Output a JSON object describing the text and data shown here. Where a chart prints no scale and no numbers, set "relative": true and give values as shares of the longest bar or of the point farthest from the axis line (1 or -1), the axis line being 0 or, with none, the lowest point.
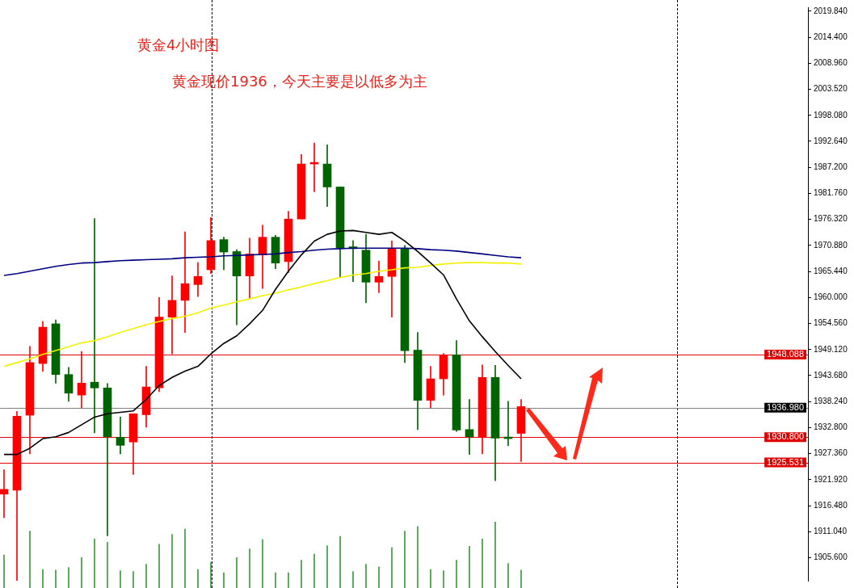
{
  "chart_data": [
    {
      "type": "candlestick",
      "title": "黄金4小时图",
      "subtitle": "黄金现价1936，今天主要是以低多为主",
      "tick_labels": "y",
      "categories": [
        null,
        null,
        null,
        null,
        null,
        null,
        null,
        null,
        null,
        null,
        null,
        null,
        null,
        null,
        null,
        null,
        null,
        null,
        null,
        null,
        null,
        null,
        null,
        null,
        null,
        null,
        null,
        null,
        null,
        null,
        null,
        null,
        null,
        null,
        null,
        null,
        null,
        null,
        null,
        null,
        null
      ],
      "ohlc": [
        [
          1918.9,
          1924.0,
          1914.0,
          1919.9
        ],
        [
          1919.7,
          1936.2,
          1900.8,
          1935.2
        ],
        [
          1935.4,
          1949.8,
          1927.3,
          1946.4
        ],
        [
          1946.2,
          1955.0,
          1944.6,
          1953.8
        ],
        [
          1954.5,
          1955.3,
          1942.1,
          1943.9
        ],
        [
          1943.9,
          1945.4,
          1938.3,
          1940.0
        ],
        [
          1939.6,
          1948.7,
          1937.0,
          1942.1
        ],
        [
          1942.3,
          1976.5,
          1931.7,
          1941.1
        ],
        [
          1941.1,
          1942.0,
          1910.2,
          1930.9
        ],
        [
          1930.8,
          1935.0,
          1927.3,
          1929.1
        ],
        [
          1929.8,
          1935.7,
          1923.0,
          1935.7
        ],
        [
          1935.5,
          1945.6,
          1932.9,
          1941.3
        ],
        [
          1941.1,
          1960.0,
          1940.3,
          1955.9
        ],
        [
          1955.9,
          1964.5,
          1948.2,
          1959.4
        ],
        [
          1959.4,
          1973.7,
          1952.7,
          1962.9
        ],
        [
          1962.7,
          1967.3,
          1960.2,
          1964.4
        ],
        [
          1965.8,
          1976.7,
          1965.0,
          1971.9
        ],
        [
          1972.1,
          1972.6,
          1965.8,
          1969.5
        ],
        [
          1969.6,
          1970.0,
          1954.3,
          1964.5
        ],
        [
          1964.5,
          1972.4,
          1959.9,
          1969.1
        ],
        [
          1968.9,
          1975.1,
          1961.9,
          1972.6
        ],
        [
          1972.6,
          1973.0,
          1966.0,
          1967.2
        ],
        [
          1967.5,
          1978.0,
          1965.2,
          1976.4
        ],
        [
          1976.4,
          1989.9,
          1976.4,
          1987.9
        ],
        [
          1987.9,
          1992.3,
          1982.1,
          1987.9
        ],
        [
          1987.9,
          1991.9,
          1979.0,
          1983.1
        ],
        [
          1983.1,
          1983.1,
          1964.2,
          1970.4
        ],
        [
          1970.6,
          1971.9,
          1963.3,
          1970.2
        ],
        [
          1969.9,
          1973.2,
          1958.9,
          1963.2
        ],
        [
          1963.2,
          1967.6,
          1961.0,
          1964.4
        ],
        [
          1964.4,
          1971.8,
          1955.9,
          1970.3
        ],
        [
          1970.3,
          1970.9,
          1946.4,
          1948.9
        ],
        [
          1949.0,
          1952.7,
          1932.4,
          1938.5
        ],
        [
          1938.5,
          1945.6,
          1937.0,
          1943.0
        ],
        [
          1943.0,
          1948.3,
          1939.6,
          1948.0
        ],
        [
          1948.0,
          1951.0,
          1932.0,
          1932.3
        ],
        [
          1932.4,
          1938.7,
          1927.2,
          1930.9
        ],
        [
          1930.8,
          1945.9,
          1927.3,
          1943.3
        ],
        [
          1943.3,
          1945.8,
          1921.7,
          1930.6
        ],
        [
          1930.8,
          1938.3,
          1929.0,
          1930.5
        ],
        [
          1931.6,
          1938.7,
          1925.7,
          1937.2
        ]
      ],
      "colors": [
        "#ff0000",
        "#ff0000",
        "#ff0000",
        "#ff0000",
        "#006400",
        "#006400",
        "#ff0000",
        "#006400",
        "#006400",
        "#006400",
        "#ff0000",
        "#ff0000",
        "#ff0000",
        "#ff0000",
        "#ff0000",
        "#ff0000",
        "#ff0000",
        "#006400",
        "#006400",
        "#ff0000",
        "#ff0000",
        "#006400",
        "#ff0000",
        "#ff0000",
        "#ff0000",
        "#006400",
        "#006400",
        "#006400",
        "#006400",
        "#ff0000",
        "#ff0000",
        "#006400",
        "#006400",
        "#ff0000",
        "#ff0000",
        "#006400",
        "#006400",
        "#ff0000",
        "#006400",
        "#006400",
        "#ff0000"
      ],
      "series": [
        {
          "type": "line",
          "color": "#000000",
          "values": [
            1927.2,
            1927.2,
            1928.5,
            1930.5,
            1930.9,
            1931.8,
            1933.4,
            1935.0,
            1935.7,
            1936.0,
            1936.3,
            1938.7,
            1941.6,
            1943.3,
            1944.6,
            1945.6,
            1948.2,
            1950.4,
            1952.0,
            1954.5,
            1957.3,
            1961.7,
            1965.5,
            1968.9,
            1971.8,
            1973.2,
            1973.9,
            1974.0,
            1973.6,
            1973.2,
            1973.6,
            1971.8,
            1969.6,
            1967.2,
            1964.7,
            1959.7,
            1955.1,
            1951.8,
            1948.7,
            1945.8,
            1943.0
          ]
        },
        {
          "type": "line",
          "color": "#000080",
          "values": [
            1964.6,
            1965.0,
            1965.5,
            1966.0,
            1966.5,
            1966.9,
            1967.2,
            1967.3,
            1967.5,
            1967.7,
            1967.8,
            1967.9,
            1968.0,
            1968.1,
            1968.3,
            1968.4,
            1968.5,
            1968.7,
            1968.8,
            1968.9,
            1969.0,
            1969.1,
            1969.4,
            1969.6,
            1969.9,
            1970.1,
            1970.2,
            1970.3,
            1970.3,
            1970.3,
            1970.3,
            1970.3,
            1970.2,
            1970.0,
            1969.9,
            1969.7,
            1969.4,
            1969.1,
            1968.8,
            1968.5,
            1968.3
          ]
        },
        {
          "type": "line",
          "color": "#f2f200",
          "values": [
            1945.6,
            1946.4,
            1947.2,
            1948.1,
            1948.9,
            1949.7,
            1950.5,
            1951.0,
            1951.8,
            1952.7,
            1953.5,
            1954.3,
            1955.0,
            1955.6,
            1956.1,
            1956.8,
            1957.8,
            1958.4,
            1959.1,
            1959.7,
            1960.4,
            1960.9,
            1961.6,
            1962.2,
            1962.9,
            1963.5,
            1964.2,
            1964.7,
            1965.0,
            1965.5,
            1965.8,
            1966.2,
            1966.3,
            1966.7,
            1967.0,
            1967.2,
            1967.3,
            1967.3,
            1967.2,
            1967.2,
            1967.0
          ]
        }
      ],
      "ylim": [
        1900.8,
        2020.66
      ],
      "yticks": [
        {
          "value": 1905.6,
          "label": "1905.600"
        },
        {
          "value": 1911.04,
          "label": "1911.040"
        },
        {
          "value": 1916.48,
          "label": "1916.480"
        },
        {
          "value": 1921.92,
          "label": "1921.920"
        },
        {
          "value": 1927.36,
          "label": "1927.360"
        },
        {
          "value": 1932.8,
          "label": "1932.800"
        },
        {
          "value": 1938.24,
          "label": "1938.240"
        },
        {
          "value": 1943.68,
          "label": "1943.680"
        },
        {
          "value": 1949.12,
          "label": "1949.120"
        },
        {
          "value": 1954.56,
          "label": "1954.560"
        },
        {
          "value": 1960,
          "label": "1960.000"
        },
        {
          "value": 1965.44,
          "label": "1965.440"
        },
        {
          "value": 1970.88,
          "label": "1970.880"
        },
        {
          "value": 1976.32,
          "label": "1976.320"
        },
        {
          "value": 1981.76,
          "label": "1981.760"
        },
        {
          "value": 1987.2,
          "label": "1987.200"
        },
        {
          "value": 1992.64,
          "label": "1992.640"
        },
        {
          "value": 1998.08,
          "label": "1998.080"
        },
        {
          "value": 2003.52,
          "label": "2003.520"
        },
        {
          "value": 2008.96,
          "label": "2008.960"
        },
        {
          "value": 2014.4,
          "label": "2014.400"
        },
        {
          "value": 2019.84,
          "label": "2019.840"
        }
      ],
      "ref_lines": [
        {
          "axis": "y",
          "value": 1948.088,
          "label": "1948.088",
          "color": "#e00000"
        },
        {
          "axis": "y",
          "value": 1936.98,
          "label": "1936.980",
          "color": "#808080"
        },
        {
          "axis": "y",
          "value": 1930.8,
          "label": "1930.800",
          "color": "#e00000"
        },
        {
          "axis": "y",
          "value": 1925.531,
          "label": "1925.531",
          "color": "#e00000"
        }
      ]
    },
    {
      "type": "bar",
      "relative": true,
      "color": "#3c9a3c",
      "categories": [
        null,
        null,
        null,
        null,
        null,
        null,
        null,
        null,
        null,
        null,
        null,
        null,
        null,
        null,
        null,
        null,
        null,
        null,
        null,
        null,
        null,
        null,
        null,
        null,
        null,
        null,
        null,
        null,
        null,
        null,
        null,
        null,
        null,
        null,
        null,
        null,
        null,
        null,
        null,
        null,
        null
      ],
      "values": [
        0.5,
        null,
        0.86,
        0.28,
        0.27,
        0.31,
        0.46,
        0.74,
        0.69,
        0.26,
        0.25,
        0.36,
        0.66,
        0.81,
        0.89,
        0.28,
        0.39,
        0.23,
        0.46,
        0.59,
        0.73,
        0.23,
        0.23,
        0.42,
        0.51,
        0.64,
        0.78,
        0.25,
        0.36,
        0.32,
        0.61,
        0.86,
        0.93,
        0.28,
        0.26,
        0.42,
        0.63,
        0.74,
        1,
        0.37,
        0.27
      ]
    }
  ]
}
